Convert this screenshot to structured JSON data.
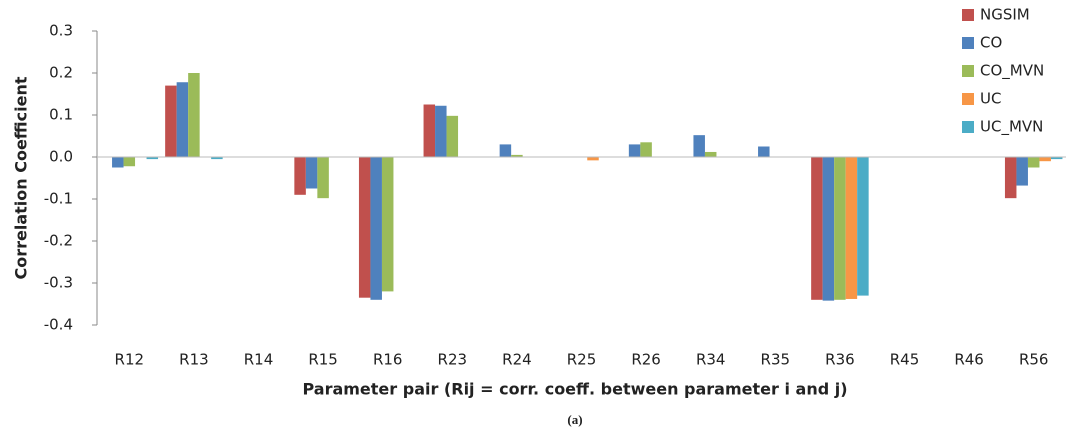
{
  "chart_data": {
    "type": "bar",
    "y_label": "Correlation Coefficient",
    "x_label": "Parameter pair (Rij = corr. coeff. between parameter i and j)",
    "caption": "(a)",
    "categories": [
      "R12",
      "R13",
      "R14",
      "R15",
      "R16",
      "R23",
      "R24",
      "R25",
      "R26",
      "R34",
      "R35",
      "R36",
      "R45",
      "R46",
      "R56"
    ],
    "series": [
      {
        "name": "NGSIM",
        "color": "#c0504d",
        "values": [
          0,
          0.17,
          0,
          -0.09,
          -0.335,
          0.125,
          0,
          0,
          0,
          0,
          0,
          -0.34,
          0,
          0,
          -0.098
        ]
      },
      {
        "name": "CO",
        "color": "#4f81bd",
        "values": [
          -0.025,
          0.178,
          0,
          -0.075,
          -0.34,
          0.122,
          0.03,
          0,
          0.03,
          0.052,
          0.025,
          -0.342,
          0,
          0,
          -0.068
        ]
      },
      {
        "name": "CO_MVN",
        "color": "#9bbb59",
        "values": [
          -0.022,
          0.2,
          0,
          -0.098,
          -0.32,
          0.098,
          0.005,
          0,
          0.035,
          0.012,
          0,
          -0.34,
          0,
          0,
          -0.025
        ]
      },
      {
        "name": "UC",
        "color": "#f79646",
        "values": [
          0,
          0,
          0,
          0,
          0,
          0,
          0,
          -0.008,
          0,
          0,
          0,
          -0.338,
          0,
          0,
          -0.01
        ]
      },
      {
        "name": "UC_MVN",
        "color": "#4bacc6",
        "values": [
          -0.005,
          -0.005,
          0,
          0,
          0,
          0,
          0,
          0,
          0,
          0,
          0,
          -0.33,
          0,
          0,
          -0.005
        ]
      }
    ],
    "ylim": [
      -0.4,
      0.3
    ],
    "yticks": [
      -0.4,
      -0.3,
      -0.2,
      -0.1,
      {
        "value": 0,
        "label": "0.0"
      },
      0.1,
      0.2,
      0.3
    ],
    "grid": false,
    "legend": "top-right"
  }
}
